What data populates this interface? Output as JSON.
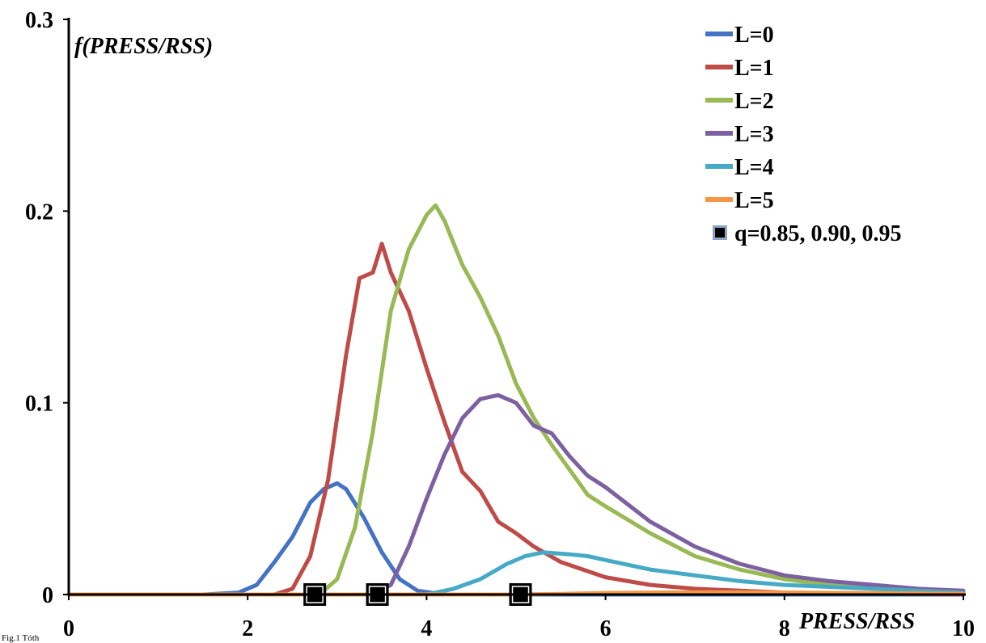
{
  "chart_data": {
    "type": "line",
    "xlabel": "PRESS/RSS",
    "ylabel": "f(PRESS/RSS)",
    "xlim": [
      0,
      10
    ],
    "ylim": [
      0,
      0.3
    ],
    "x_ticks": [
      "0",
      "2",
      "4",
      "6",
      "8",
      "10"
    ],
    "y_ticks": [
      "0",
      "0.1",
      "0.2",
      "0.3"
    ],
    "grid": false,
    "legend_position": "top-right",
    "caption": "Fig.1 Tóth",
    "series": [
      {
        "name": "L=0",
        "color": "#4472c4",
        "x": [
          0,
          1.5,
          1.9,
          2.1,
          2.3,
          2.5,
          2.7,
          2.85,
          3.0,
          3.1,
          3.3,
          3.5,
          3.7,
          3.9,
          4.2,
          10
        ],
        "y": [
          0,
          0,
          0.001,
          0.005,
          0.017,
          0.03,
          0.048,
          0.055,
          0.058,
          0.055,
          0.04,
          0.022,
          0.008,
          0.002,
          0,
          0
        ]
      },
      {
        "name": "L=1",
        "color": "#be4b48",
        "x": [
          0,
          2.3,
          2.5,
          2.7,
          2.9,
          3.1,
          3.25,
          3.4,
          3.5,
          3.6,
          3.8,
          4.0,
          4.2,
          4.4,
          4.6,
          4.8,
          5.0,
          5.2,
          5.5,
          6.0,
          6.5,
          7.0,
          8.0,
          10
        ],
        "y": [
          0,
          0,
          0.003,
          0.02,
          0.06,
          0.125,
          0.165,
          0.168,
          0.183,
          0.168,
          0.148,
          0.118,
          0.09,
          0.064,
          0.054,
          0.038,
          0.032,
          0.025,
          0.017,
          0.009,
          0.005,
          0.003,
          0.001,
          0
        ]
      },
      {
        "name": "L=2",
        "color": "#98b954",
        "x": [
          0,
          2.8,
          3.0,
          3.2,
          3.4,
          3.6,
          3.8,
          4.0,
          4.1,
          4.2,
          4.4,
          4.6,
          4.8,
          5.0,
          5.2,
          5.4,
          5.6,
          5.8,
          6.0,
          6.5,
          7.0,
          7.5,
          8.0,
          8.5,
          9.0,
          10
        ],
        "y": [
          0,
          0,
          0.008,
          0.035,
          0.085,
          0.148,
          0.18,
          0.198,
          0.203,
          0.195,
          0.172,
          0.155,
          0.135,
          0.11,
          0.092,
          0.078,
          0.065,
          0.052,
          0.046,
          0.032,
          0.02,
          0.013,
          0.008,
          0.005,
          0.003,
          0.001
        ]
      },
      {
        "name": "L=3",
        "color": "#7d60a0",
        "x": [
          0,
          3.4,
          3.6,
          3.8,
          4.0,
          4.2,
          4.4,
          4.6,
          4.8,
          5.0,
          5.2,
          5.4,
          5.6,
          5.8,
          6.0,
          6.5,
          7.0,
          7.5,
          8.0,
          8.5,
          9.0,
          9.5,
          10
        ],
        "y": [
          0,
          0,
          0.005,
          0.025,
          0.05,
          0.073,
          0.092,
          0.102,
          0.104,
          0.1,
          0.088,
          0.084,
          0.072,
          0.062,
          0.056,
          0.038,
          0.025,
          0.016,
          0.01,
          0.007,
          0.005,
          0.003,
          0.002
        ]
      },
      {
        "name": "L=4",
        "color": "#46aac5",
        "x": [
          0,
          4.0,
          4.3,
          4.6,
          4.9,
          5.1,
          5.3,
          5.6,
          5.8,
          6.0,
          6.5,
          7.0,
          7.5,
          8.0,
          8.5,
          9.0,
          9.5,
          10
        ],
        "y": [
          0,
          0,
          0.003,
          0.008,
          0.016,
          0.02,
          0.022,
          0.021,
          0.02,
          0.018,
          0.013,
          0.01,
          0.007,
          0.005,
          0.004,
          0.003,
          0.002,
          0.001
        ]
      },
      {
        "name": "L=5",
        "color": "#f59646",
        "x": [
          0,
          5.0,
          5.5,
          6.0,
          6.5,
          7.0,
          7.5,
          8.0,
          9.0,
          10
        ],
        "y": [
          0,
          0,
          0.0003,
          0.0008,
          0.001,
          0.0012,
          0.0012,
          0.001,
          0.0007,
          0.0004
        ]
      }
    ],
    "markers": {
      "name": "q=0.85, 0.90, 0.95",
      "color": "#000000",
      "x": [
        2.75,
        3.45,
        5.05
      ],
      "y": [
        0,
        0,
        0
      ]
    }
  }
}
